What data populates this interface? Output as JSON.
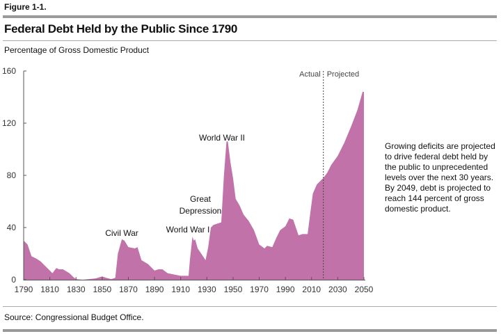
{
  "figure_label": "Figure 1-1.",
  "source": "Source: Congressional Budget Office.",
  "note": "Growing deficits are projected to drive federal debt held by the public to unprecedented levels over the next 30 years. By 2049, debt is projected to reach 144 percent of gross domestic product.",
  "colors": {
    "fill": "#c072a9",
    "divider": "#444444"
  },
  "chart_data": {
    "type": "area",
    "title": "Federal Debt Held by the Public Since 1790",
    "ylabel": "Percentage of Gross Domestic Product",
    "xlabel": "",
    "xlim": [
      1790,
      2050
    ],
    "ylim": [
      0,
      160
    ],
    "xticks": [
      1790,
      1810,
      1830,
      1850,
      1870,
      1890,
      1910,
      1930,
      1950,
      1970,
      1990,
      2010,
      2030,
      2050
    ],
    "yticks": [
      0,
      40,
      80,
      120,
      160
    ],
    "grid": false,
    "divider": {
      "x": 2019,
      "left_label": "Actual",
      "right_label": "Projected"
    },
    "annotations": [
      {
        "text": "Civil War",
        "x": 1865,
        "y": 31
      },
      {
        "text": "World War I",
        "x": 1919,
        "y": 33
      },
      {
        "text": "Great Depression",
        "x": 1933,
        "y": 42
      },
      {
        "text": "World War II",
        "x": 1946,
        "y": 106
      }
    ],
    "x": [
      1790,
      1793,
      1796,
      1800,
      1803,
      1805,
      1808,
      1812,
      1815,
      1817,
      1820,
      1825,
      1828,
      1830,
      1835,
      1840,
      1845,
      1850,
      1853,
      1857,
      1860,
      1862,
      1865,
      1867,
      1870,
      1875,
      1877,
      1880,
      1885,
      1890,
      1893,
      1896,
      1900,
      1905,
      1910,
      1916,
      1917,
      1919,
      1920,
      1921,
      1923,
      1927,
      1929,
      1931,
      1933,
      1935,
      1938,
      1941,
      1943,
      1945,
      1946,
      1948,
      1950,
      1952,
      1955,
      1958,
      1962,
      1966,
      1970,
      1974,
      1976,
      1980,
      1983,
      1986,
      1990,
      1993,
      1996,
      2000,
      2003,
      2007,
      2009,
      2011,
      2014,
      2017,
      2019,
      2022,
      2025,
      2030,
      2035,
      2040,
      2045,
      2049,
      2050
    ],
    "values": [
      30,
      27,
      18,
      16,
      14,
      12,
      9,
      5,
      9,
      8,
      8,
      5,
      2,
      0.5,
      0,
      0.5,
      1,
      2.5,
      1.5,
      0.5,
      1.5,
      20,
      31,
      30,
      25,
      24,
      25,
      15,
      12,
      7,
      8,
      8,
      5,
      4,
      3,
      3,
      15,
      33,
      30,
      31,
      24,
      18,
      15,
      25,
      40,
      42,
      43,
      44,
      80,
      106,
      106,
      90,
      78,
      62,
      57,
      50,
      45,
      38,
      27,
      24,
      26,
      25,
      32,
      38,
      41,
      47,
      46,
      34,
      35,
      35,
      51,
      66,
      73,
      76,
      78,
      82,
      88,
      95,
      105,
      117,
      130,
      144,
      144
    ]
  }
}
